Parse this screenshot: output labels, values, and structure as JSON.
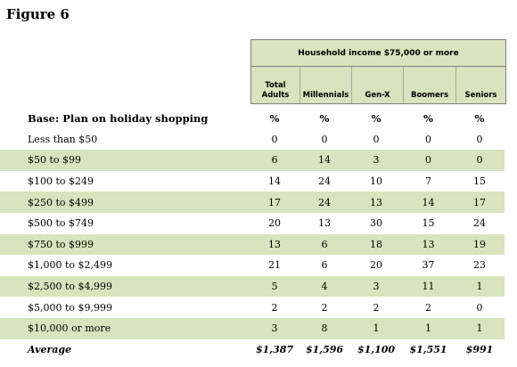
{
  "figure_title": "Figure 6",
  "group_header": "Household income $75,000 or more",
  "columns": [
    "Total Adults",
    "Millennials",
    "Gen-X",
    "Boomers",
    "Seniors"
  ],
  "base_row": {
    "label": "Base: Plan on holiday shopping",
    "values": [
      "%",
      "%",
      "%",
      "%",
      "%"
    ]
  },
  "rows": [
    {
      "label": "Less than $50",
      "values": [
        "0",
        "0",
        "0",
        "0",
        "0"
      ]
    },
    {
      "label": "$50 to $99",
      "values": [
        "6",
        "14",
        "3",
        "0",
        "0"
      ]
    },
    {
      "label": "$100 to $249",
      "values": [
        "14",
        "24",
        "10",
        "7",
        "15"
      ]
    },
    {
      "label": "$250 to $499",
      "values": [
        "17",
        "24",
        "13",
        "14",
        "17"
      ]
    },
    {
      "label": "$500 to $749",
      "values": [
        "20",
        "13",
        "30",
        "15",
        "24"
      ]
    },
    {
      "label": "$750 to $999",
      "values": [
        "13",
        "6",
        "18",
        "13",
        "19"
      ]
    },
    {
      "label": "$1,000 to $2,499",
      "values": [
        "21",
        "6",
        "20",
        "37",
        "23"
      ]
    },
    {
      "label": "$2,500 to $4,999",
      "values": [
        "5",
        "4",
        "3",
        "11",
        "1"
      ]
    },
    {
      "label": "$5,000 to $9,999",
      "values": [
        "2",
        "2",
        "2",
        "2",
        "0"
      ]
    },
    {
      "label": "$10,000 or more",
      "values": [
        "3",
        "8",
        "1",
        "1",
        "1"
      ]
    }
  ],
  "average_row": {
    "label": "Average",
    "values": [
      "$1,387",
      "$1,596",
      "$1,100",
      "$1,551",
      "$991"
    ]
  },
  "colors": {
    "shade": "#d7e4bd",
    "border": "#7f7f7f"
  }
}
